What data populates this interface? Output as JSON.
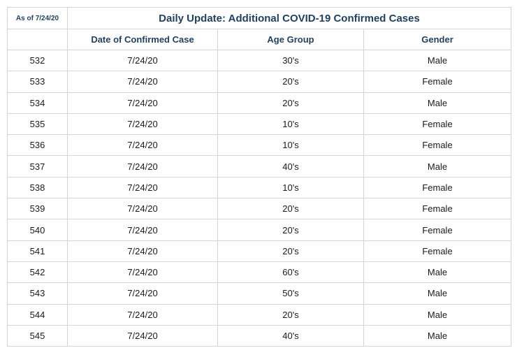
{
  "as_of": "As of 7/24/20",
  "title": "Daily Update: Additional COVID-19 Confirmed Cases",
  "columns": [
    "",
    "Date of Confirmed Case",
    "Age Group",
    "Gender"
  ],
  "rows": [
    {
      "id": "532",
      "date": "7/24/20",
      "age_group": "30's",
      "gender": "Male"
    },
    {
      "id": "533",
      "date": "7/24/20",
      "age_group": "20's",
      "gender": "Female"
    },
    {
      "id": "534",
      "date": "7/24/20",
      "age_group": "20's",
      "gender": "Male"
    },
    {
      "id": "535",
      "date": "7/24/20",
      "age_group": "10's",
      "gender": "Female"
    },
    {
      "id": "536",
      "date": "7/24/20",
      "age_group": "10's",
      "gender": "Female"
    },
    {
      "id": "537",
      "date": "7/24/20",
      "age_group": "40's",
      "gender": "Male"
    },
    {
      "id": "538",
      "date": "7/24/20",
      "age_group": "10's",
      "gender": "Female"
    },
    {
      "id": "539",
      "date": "7/24/20",
      "age_group": "20's",
      "gender": "Female"
    },
    {
      "id": "540",
      "date": "7/24/20",
      "age_group": "20's",
      "gender": "Female"
    },
    {
      "id": "541",
      "date": "7/24/20",
      "age_group": "20's",
      "gender": "Female"
    },
    {
      "id": "542",
      "date": "7/24/20",
      "age_group": "60's",
      "gender": "Male"
    },
    {
      "id": "543",
      "date": "7/24/20",
      "age_group": "50's",
      "gender": "Male"
    },
    {
      "id": "544",
      "date": "7/24/20",
      "age_group": "20's",
      "gender": "Male"
    },
    {
      "id": "545",
      "date": "7/24/20",
      "age_group": "40's",
      "gender": "Male"
    }
  ]
}
